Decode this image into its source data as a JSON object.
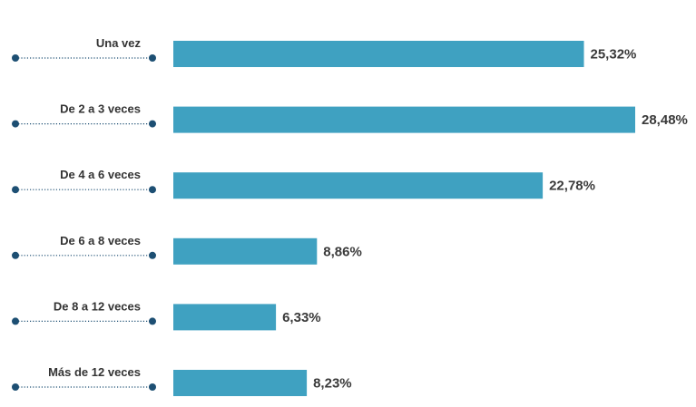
{
  "chart_data": {
    "type": "bar",
    "orientation": "horizontal",
    "categories": [
      "Una vez",
      "De 2 a 3 veces",
      "De 4 a 6 veces",
      "De 6 a 8 veces",
      "De 8 a 12 veces",
      "Más de 12 veces"
    ],
    "values": [
      25.32,
      28.48,
      22.78,
      8.86,
      6.33,
      8.23
    ],
    "value_labels": [
      "25,32%",
      "28,48%",
      "22,78%",
      "8,86%",
      "6,33%",
      "8,23%"
    ],
    "title": "",
    "xlabel": "",
    "ylabel": "",
    "xlim": [
      0,
      28.48
    ],
    "grid": false,
    "legend": "none",
    "colors": {
      "bar": "#3fa1c1",
      "dot": "#1d4f73",
      "dotted_line": "#1d4f73",
      "label": "#333333",
      "value_label": "#3a3a3a"
    }
  }
}
